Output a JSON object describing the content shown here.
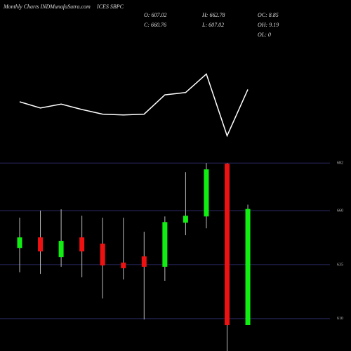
{
  "header": {
    "site": "Monthly Charts INDMunafaSutra.com",
    "symbol": "ICES SBPC",
    "stats": [
      [
        "O: 607.02",
        "C: 660.76"
      ],
      [
        "H: 662.78",
        "L: 607.02"
      ],
      [
        "OC: 8.85",
        "OH: 9.19",
        "OL: 0"
      ]
    ]
  },
  "chart_data": {
    "type": "candlestick",
    "categories": [
      null,
      null,
      null,
      null,
      null,
      null,
      null,
      null,
      null,
      null,
      null,
      null
    ],
    "open": [
      642.7,
      647.6,
      638.5,
      647.6,
      644.7,
      635.9,
      638.8,
      634.0,
      654.4,
      657.3,
      681.7,
      607.02
    ],
    "high": [
      656.7,
      660.0,
      660.6,
      657.6,
      656.7,
      656.7,
      650.2,
      657.3,
      677.8,
      682.0,
      682.0,
      662.78
    ],
    "low": [
      631.4,
      630.7,
      634.0,
      629.1,
      619.3,
      628.1,
      609.6,
      627.5,
      648.6,
      651.8,
      595.0,
      607.02
    ],
    "close": [
      647.6,
      641.1,
      646.0,
      641.1,
      634.6,
      633.3,
      634.0,
      654.7,
      657.6,
      679.1,
      607.0,
      660.76
    ],
    "up_color": "#11ee11",
    "down_color": "#ee1111",
    "ylim": [
      595,
      686
    ],
    "yticks": [
      682,
      660,
      635,
      610
    ],
    "grid": true,
    "grid_color": "#2a2a66",
    "indicator": {
      "color": "#ffffff",
      "values": [
        50,
        42,
        47,
        40,
        34,
        33,
        34,
        59,
        62,
        86,
        6,
        66
      ],
      "ylim": [
        0,
        100
      ]
    }
  }
}
